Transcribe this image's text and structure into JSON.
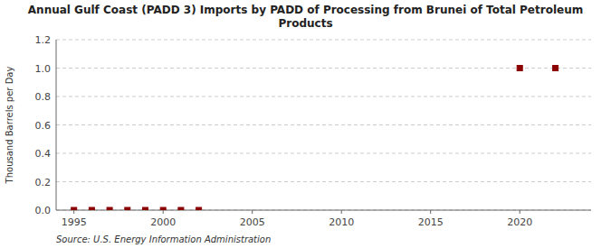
{
  "chart_data": {
    "type": "scatter",
    "title": "Annual Gulf Coast (PADD 3) Imports by PADD of Processing from Brunei of Total Petroleum\nProducts",
    "y_label": "Thousand Barrels per Day",
    "source": "Source: U.S. Energy Information Administration",
    "x": [
      1995,
      1996,
      1997,
      1998,
      1999,
      2000,
      2001,
      2002,
      2020,
      2022
    ],
    "values": [
      0.0,
      0.0,
      0.0,
      0.0,
      0.0,
      0.0,
      0.0,
      0.0,
      1.0,
      1.0
    ],
    "color": "#8b0000",
    "marker": "square",
    "xlim": [
      1994,
      2024
    ],
    "ylim": [
      0.0,
      1.2
    ],
    "xticks": [
      1995,
      2000,
      2005,
      2010,
      2015,
      2020
    ],
    "yticks": [
      {
        "value": 0.0,
        "label": "0.0"
      },
      0.2,
      0.4,
      0.6,
      0.8,
      {
        "value": 1.0,
        "label": "1.0"
      },
      1.2
    ],
    "grid": "y"
  }
}
